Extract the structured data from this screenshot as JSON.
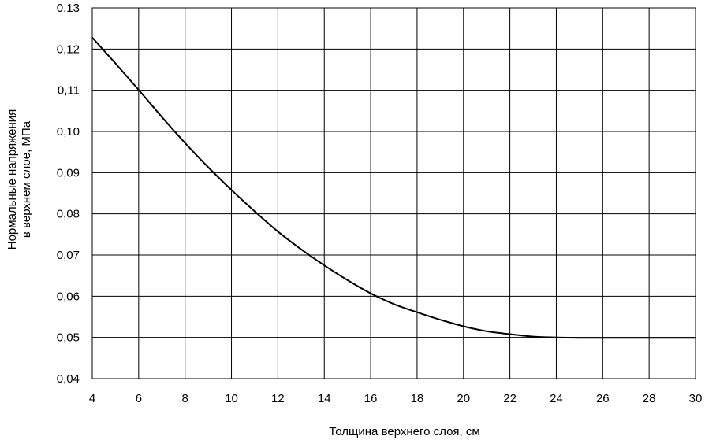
{
  "chart_data": {
    "type": "line",
    "title": "",
    "xlabel": "Толщина верхнего слоя, см",
    "ylabel": [
      "Нормальные напряжения",
      "в верхнем слое, МПа"
    ],
    "xlim": [
      4,
      30
    ],
    "ylim": [
      0.04,
      0.13
    ],
    "x_ticks": [
      4,
      6,
      8,
      10,
      12,
      14,
      16,
      18,
      20,
      22,
      24,
      26,
      28,
      30
    ],
    "x_tick_labels": [
      "4",
      "6",
      "8",
      "10",
      "12",
      "14",
      "16",
      "18",
      "20",
      "22",
      "24",
      "26",
      "28",
      "30"
    ],
    "y_ticks": [
      0.04,
      0.05,
      0.06,
      0.07,
      0.08,
      0.09,
      0.1,
      0.11,
      0.12,
      0.13
    ],
    "y_tick_labels": [
      "0,04",
      "0,05",
      "0,06",
      "0,07",
      "0,08",
      "0,09",
      "0,10",
      "0,11",
      "0,12",
      "0,13"
    ],
    "grid": true,
    "line_color": "#000000",
    "series": [
      {
        "x": [
          4,
          5,
          6,
          7,
          8,
          9,
          10,
          11,
          12,
          13,
          14,
          15,
          16,
          17,
          18,
          19,
          20,
          21,
          22,
          23,
          24,
          25,
          26,
          27,
          28,
          29,
          30
        ],
        "y": [
          0.1228,
          0.1165,
          0.1101,
          0.1035,
          0.0972,
          0.0913,
          0.0858,
          0.0806,
          0.0757,
          0.0714,
          0.0675,
          0.0639,
          0.0607,
          0.0581,
          0.0561,
          0.0543,
          0.0527,
          0.0515,
          0.0508,
          0.0502,
          0.05,
          0.0499,
          0.0499,
          0.0499,
          0.0499,
          0.0499,
          0.0499
        ]
      }
    ]
  }
}
